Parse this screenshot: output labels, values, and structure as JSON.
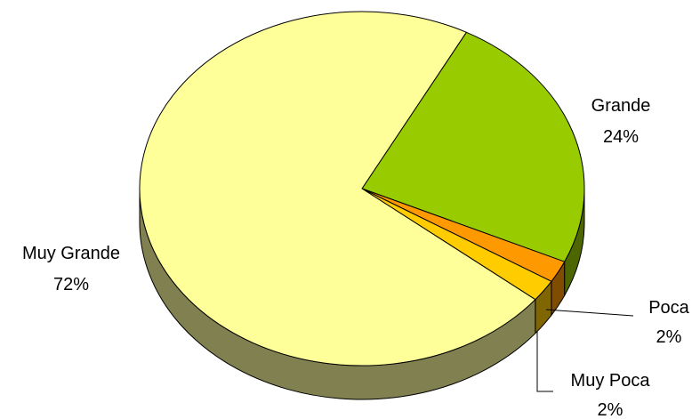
{
  "chart_data": {
    "type": "pie",
    "style": "3d",
    "categories": [
      "Grande",
      "Poca",
      "Muy Poca",
      "Muy Grande"
    ],
    "values": [
      24,
      2,
      2,
      72
    ],
    "labels": [
      {
        "name": "Grande",
        "percent": "24%"
      },
      {
        "name": "Poca",
        "percent": "2%"
      },
      {
        "name": "Muy Poca",
        "percent": "2%"
      },
      {
        "name": "Muy Grande",
        "percent": "72%"
      }
    ],
    "colors": {
      "Grande": "#99cc00",
      "Poca": "#ff9900",
      "Muy Poca": "#ffcc00",
      "Muy Grande": "#ffff99"
    },
    "side_colors": {
      "Grande": "#4d6600",
      "Poca": "#804c00",
      "Muy Poca": "#806600",
      "Muy Grande": "#808050"
    },
    "legend": "none"
  }
}
